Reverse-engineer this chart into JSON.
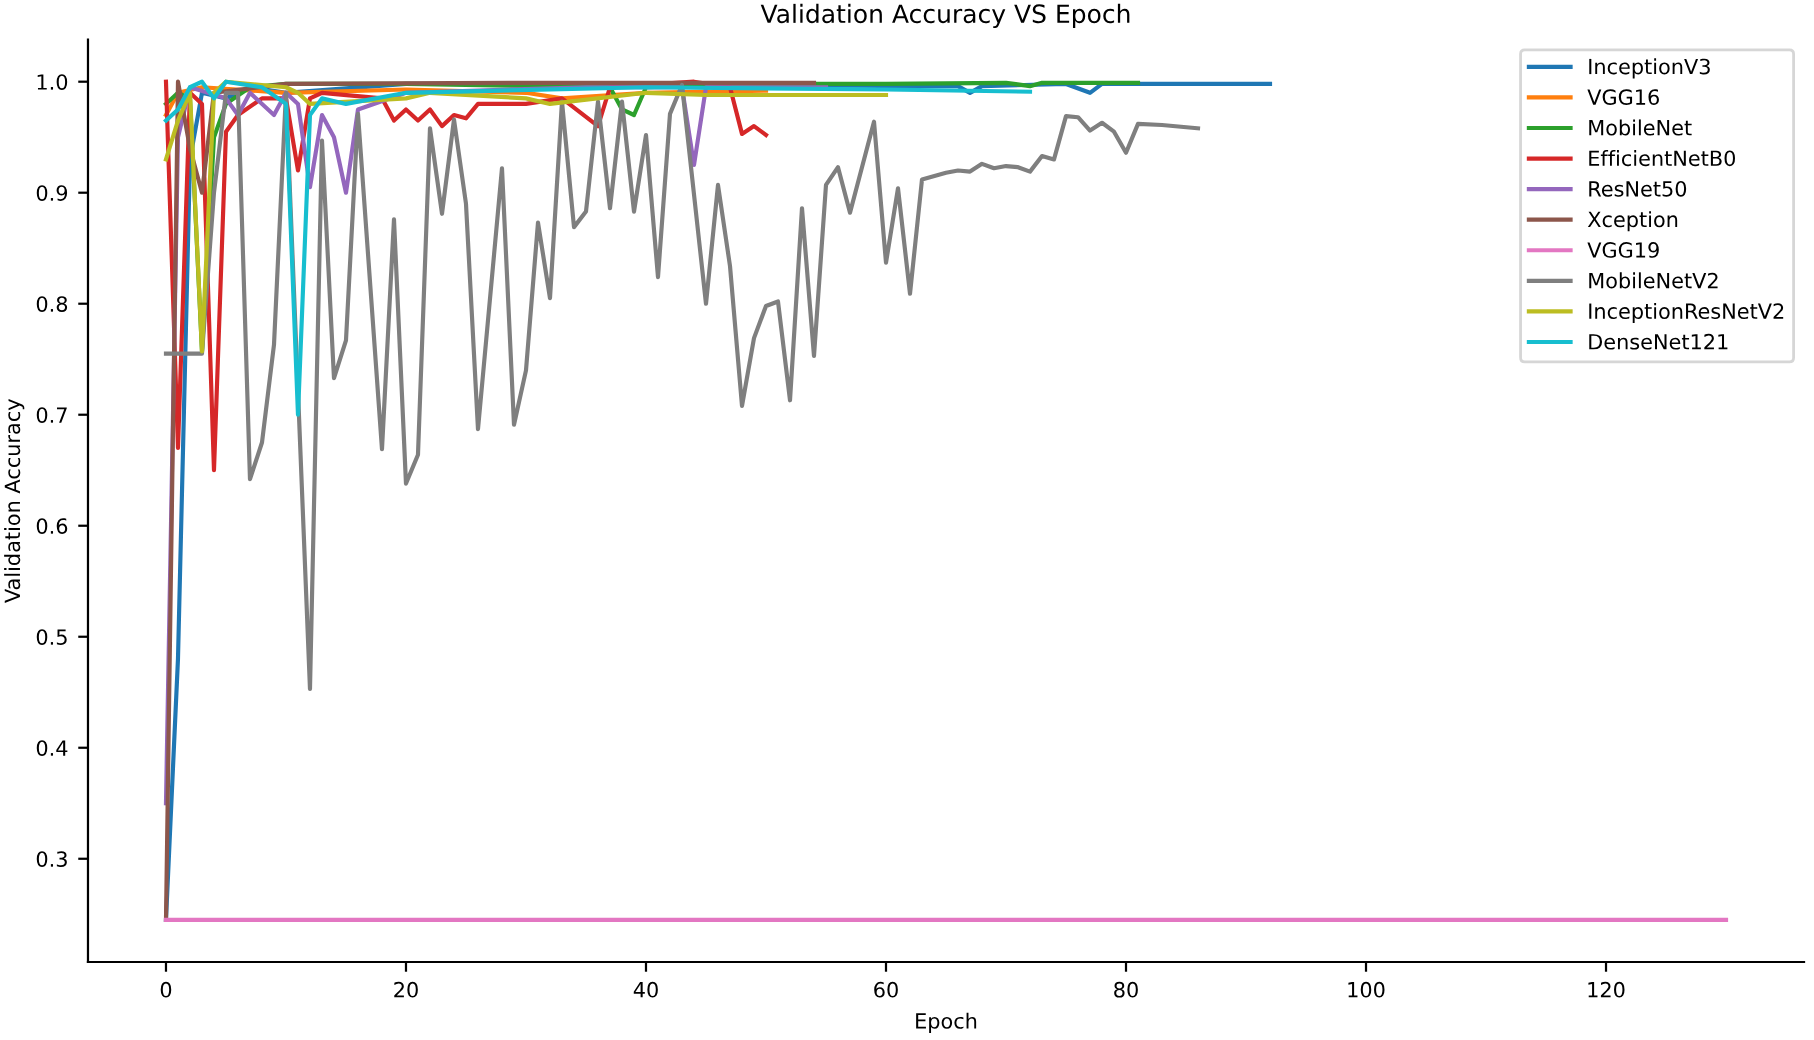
{
  "chart_data": {
    "type": "line",
    "title": "Validation Accuracy VS Epoch",
    "xlabel": "Epoch",
    "ylabel": "Validation Accuracy",
    "xlim": [
      -6.5,
      136.5
    ],
    "ylim": [
      0.207,
      1.038
    ],
    "xticks": [
      0,
      20,
      40,
      60,
      80,
      100,
      120
    ],
    "yticks": [
      0.3,
      0.4,
      0.5,
      0.6,
      0.7,
      0.8,
      0.9,
      {
        "value": 1.0,
        "label": "1.0"
      }
    ],
    "grid": false,
    "legend": "top right",
    "marker": "none",
    "line_style": "solid",
    "series": [
      {
        "name": "InceptionV3",
        "color": "#1f77b4",
        "x": [
          0,
          1,
          2,
          3,
          5,
          7,
          10,
          20,
          40,
          62,
          66,
          67,
          68,
          75,
          77,
          78,
          92
        ],
        "values": [
          0.245,
          0.48,
          0.93,
          0.99,
          0.985,
          0.995,
          0.99,
          0.998,
          0.998,
          0.996,
          0.996,
          0.99,
          0.996,
          0.998,
          0.99,
          0.998,
          0.998
        ]
      },
      {
        "name": "VGG16",
        "color": "#ff7f0e",
        "x": [
          0,
          1,
          3,
          10,
          20,
          30,
          33,
          40,
          50
        ],
        "values": [
          0.97,
          0.99,
          0.995,
          0.99,
          0.993,
          0.99,
          0.985,
          0.99,
          0.992
        ]
      },
      {
        "name": "MobileNet",
        "color": "#2ca02c",
        "x": [
          0,
          1,
          2,
          3,
          4,
          5,
          7,
          10,
          20,
          37,
          38,
          39,
          40,
          50,
          60,
          70,
          72,
          73,
          81
        ],
        "values": [
          0.98,
          0.99,
          0.985,
          0.757,
          0.95,
          0.98,
          0.995,
          0.998,
          0.998,
          0.995,
          0.975,
          0.97,
          0.995,
          0.998,
          0.998,
          0.999,
          0.996,
          0.999,
          0.999
        ]
      },
      {
        "name": "EfficientNetB0",
        "color": "#d62728",
        "x": [
          0,
          1,
          2,
          3,
          4,
          5,
          6,
          8,
          10,
          11,
          12,
          13,
          18,
          19,
          20,
          21,
          22,
          23,
          24,
          25,
          26,
          30,
          33,
          36,
          37,
          44,
          47,
          48,
          49,
          50
        ],
        "values": [
          1.0,
          0.67,
          0.99,
          0.98,
          0.65,
          0.955,
          0.97,
          0.985,
          0.985,
          0.92,
          0.985,
          0.99,
          0.985,
          0.965,
          0.975,
          0.965,
          0.975,
          0.96,
          0.97,
          0.967,
          0.98,
          0.98,
          0.985,
          0.96,
          0.995,
          1.0,
          0.995,
          0.953,
          0.96,
          0.952
        ]
      },
      {
        "name": "ResNet50",
        "color": "#9467bd",
        "x": [
          0,
          1,
          2,
          5,
          6,
          7,
          9,
          10,
          11,
          12,
          13,
          14,
          15,
          16,
          20,
          35,
          43,
          44,
          45,
          55
        ],
        "values": [
          0.35,
          0.95,
          0.995,
          0.985,
          0.97,
          0.99,
          0.97,
          0.99,
          0.98,
          0.905,
          0.97,
          0.95,
          0.9,
          0.975,
          0.99,
          0.995,
          0.995,
          0.925,
          0.995,
          0.995
        ]
      },
      {
        "name": "Xception",
        "color": "#8c564b",
        "x": [
          0,
          1,
          2,
          3,
          4,
          10,
          30,
          54
        ],
        "values": [
          0.245,
          1.0,
          0.94,
          0.9,
          0.99,
          0.998,
          0.999,
          0.999
        ]
      },
      {
        "name": "VGG19",
        "color": "#e377c2",
        "x": [
          0,
          130
        ],
        "values": [
          0.245,
          0.245
        ]
      },
      {
        "name": "MobileNetV2",
        "color": "#7f7f7f",
        "x": [
          0,
          3,
          4,
          5,
          6,
          7,
          8,
          9,
          10,
          12,
          13,
          14,
          15,
          16,
          18,
          19,
          20,
          21,
          22,
          23,
          24,
          25,
          26,
          28,
          29,
          30,
          31,
          32,
          33,
          34,
          35,
          36,
          37,
          38,
          39,
          40,
          41,
          42,
          43,
          45,
          46,
          47,
          48,
          49,
          50,
          51,
          52,
          53,
          54,
          55,
          56,
          57,
          59,
          60,
          61,
          62,
          63,
          65,
          66,
          67,
          68,
          69,
          70,
          71,
          72,
          73,
          74,
          75,
          76,
          77,
          78,
          79,
          80,
          81,
          83,
          86
        ],
        "values": [
          0.755,
          0.755,
          0.9,
          0.99,
          0.99,
          0.642,
          0.675,
          0.763,
          0.99,
          0.453,
          0.947,
          0.733,
          0.767,
          0.971,
          0.669,
          0.876,
          0.638,
          0.664,
          0.958,
          0.881,
          0.966,
          0.89,
          0.687,
          0.922,
          0.691,
          0.74,
          0.873,
          0.805,
          0.982,
          0.869,
          0.883,
          0.982,
          0.886,
          0.982,
          0.883,
          0.952,
          0.824,
          0.971,
          0.997,
          0.8,
          0.907,
          0.834,
          0.708,
          0.769,
          0.798,
          0.802,
          0.713,
          0.886,
          0.753,
          0.907,
          0.923,
          0.882,
          0.964,
          0.837,
          0.904,
          0.809,
          0.912,
          0.918,
          0.92,
          0.919,
          0.926,
          0.922,
          0.924,
          0.923,
          0.919,
          0.933,
          0.93,
          0.969,
          0.968,
          0.956,
          0.963,
          0.955,
          0.936,
          0.962,
          0.961,
          0.958
        ]
      },
      {
        "name": "InceptionResNetV2",
        "color": "#bcbd22",
        "x": [
          0,
          1,
          2,
          3,
          4,
          5,
          10,
          11,
          12,
          20,
          22,
          30,
          32,
          40,
          45,
          60
        ],
        "values": [
          0.93,
          0.965,
          0.99,
          0.757,
          0.99,
          1.0,
          0.995,
          0.99,
          0.98,
          0.985,
          0.99,
          0.985,
          0.98,
          0.99,
          0.988,
          0.988
        ]
      },
      {
        "name": "DenseNet121",
        "color": "#17becf",
        "x": [
          0,
          1,
          2,
          3,
          4,
          5,
          8,
          10,
          11,
          12,
          13,
          15,
          20,
          40,
          60,
          72
        ],
        "values": [
          0.965,
          0.975,
          0.995,
          1.0,
          0.985,
          1.0,
          0.995,
          0.98,
          0.7,
          0.97,
          0.985,
          0.98,
          0.99,
          0.995,
          0.993,
          0.991
        ]
      }
    ]
  }
}
